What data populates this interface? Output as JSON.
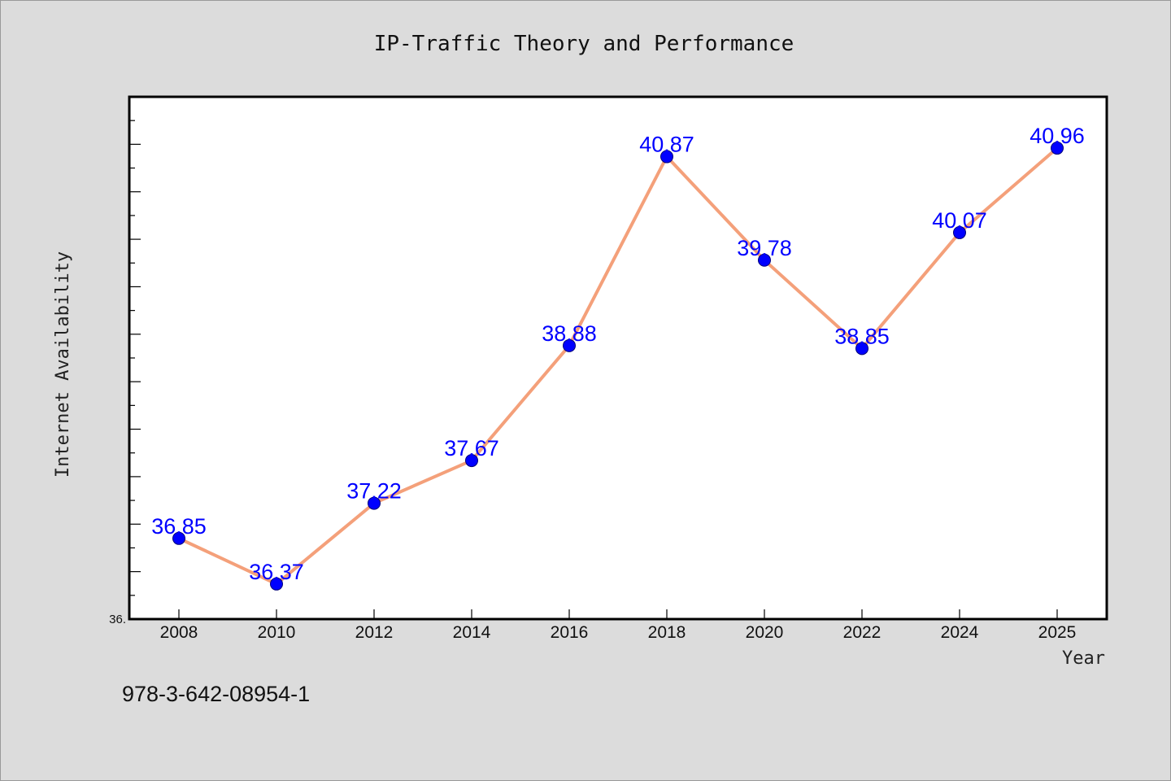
{
  "chart_data": {
    "type": "line",
    "title": "IP-Traffic Theory and Performance",
    "xlabel": "Year",
    "ylabel": "Internet Availability",
    "categories": [
      "2008",
      "2010",
      "2012",
      "2014",
      "2016",
      "2018",
      "2020",
      "2022",
      "2024",
      "2025"
    ],
    "series": [
      {
        "values": [
          36.85,
          36.37,
          37.22,
          37.67,
          38.88,
          40.87,
          39.78,
          38.85,
          40.07,
          40.96
        ],
        "labels": [
          "36.85",
          "36.37",
          "37.22",
          "37.67",
          "38.88",
          "40.87",
          "39.78",
          "38.85",
          "40.07",
          "40.96"
        ]
      }
    ],
    "ylim": [
      36.0,
      41.5
    ],
    "y_tick_labels": [
      "36."
    ],
    "grid": false,
    "colors": {
      "line": "#f4a07a",
      "marker": "#0000ff",
      "data_label": "#0000ff",
      "plot_bg": "#ffffff",
      "page_bg": "#dcdcdc"
    }
  },
  "footer": {
    "text": "978-3-642-08954-1"
  }
}
